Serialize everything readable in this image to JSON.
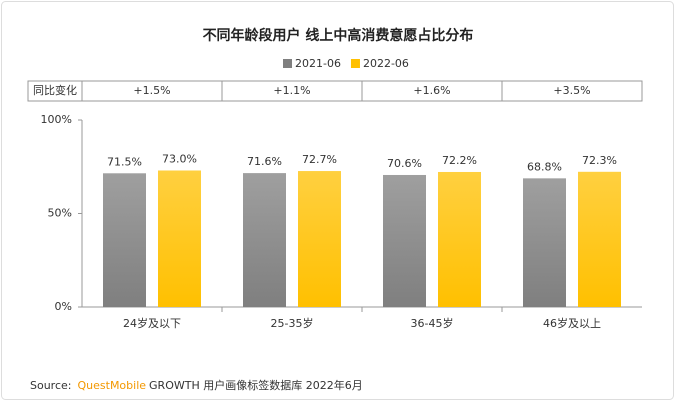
{
  "chart_data": {
    "type": "bar",
    "title": "不同年龄段用户 线上中高消费意愿占比分布",
    "categories": [
      "24岁及以下",
      "25-35岁",
      "36-45岁",
      "46岁及以上"
    ],
    "series": [
      {
        "name": "2021-06",
        "color": "#7f7f7f",
        "values": [
          71.5,
          71.6,
          70.6,
          68.8
        ],
        "value_labels": [
          "71.5%",
          "71.6%",
          "70.6%",
          "68.8%"
        ]
      },
      {
        "name": "2022-06",
        "color": "#ffc000",
        "values": [
          73.0,
          72.7,
          72.2,
          72.3
        ],
        "value_labels": [
          "73.0%",
          "72.7%",
          "72.2%",
          "72.3%"
        ]
      }
    ],
    "change_label": "同比变化",
    "change_values": [
      "+1.5%",
      "+1.1%",
      "+1.6%",
      "+3.5%"
    ],
    "ylim": [
      0,
      100
    ],
    "yticks": [
      {
        "value": 0,
        "label": "0%"
      },
      {
        "value": 50,
        "label": "50%"
      },
      {
        "value": 100,
        "label": "100%"
      }
    ],
    "source": {
      "label": "Source:",
      "brand": "QuestMobile",
      "text": "GROWTH 用户画像标签数据库 2022年6月"
    }
  }
}
